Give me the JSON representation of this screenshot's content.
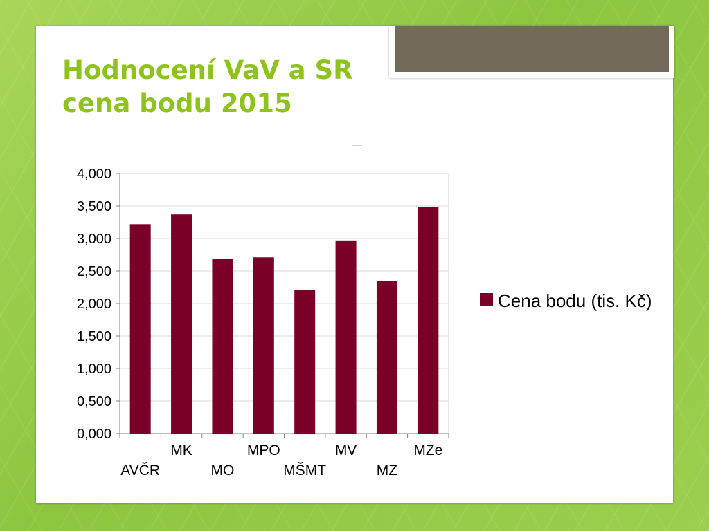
{
  "slide": {
    "title_line1": "Hodnocení VaV a SR",
    "title_line2": "cena bodu 2015",
    "tiny_note": "Cena bodu"
  },
  "colors": {
    "title": "#8ec21d",
    "bar": "#7b0027",
    "background": "#8cc63f"
  },
  "chart_data": {
    "type": "bar",
    "categories": [
      "AVČR",
      "MK",
      "MO",
      "MPO",
      "MŠMT",
      "MV",
      "MZ",
      "MZe"
    ],
    "series": [
      {
        "name": "Cena bodu (tis. Kč)",
        "values": [
          3.22,
          3.37,
          2.69,
          2.71,
          2.21,
          2.97,
          2.35,
          3.48
        ]
      }
    ],
    "yticks": [
      "0,000",
      "0,500",
      "1,000",
      "1,500",
      "2,000",
      "2,500",
      "3,000",
      "3,500",
      "4,000"
    ],
    "ylim": [
      0,
      4
    ],
    "grid": true,
    "legend": "right"
  },
  "legend": {
    "label": "Cena bodu (tis. Kč)"
  }
}
